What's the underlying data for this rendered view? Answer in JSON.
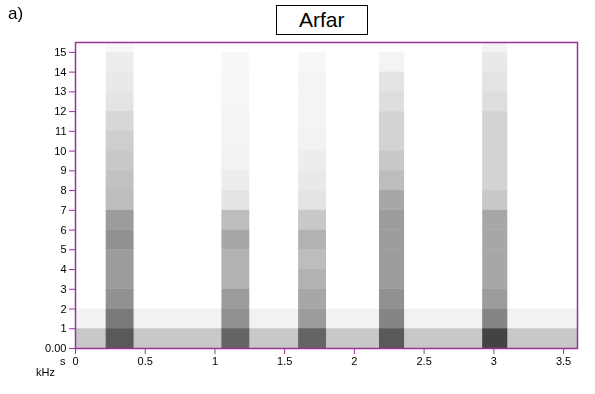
{
  "chart_data": {
    "type": "spectrogram",
    "title": "Arfar",
    "annotations": [
      "a)"
    ],
    "x_label": "s",
    "y_label": "kHz",
    "xlim": [
      0,
      3.6
    ],
    "xticks": [
      0,
      0.5,
      1,
      1.5,
      2,
      2.5,
      3,
      3.5
    ],
    "ylim": [
      0,
      15.5
    ],
    "yticks": [
      {
        "value": 0,
        "label": "0.00"
      },
      1,
      2,
      3,
      4,
      5,
      6,
      7,
      8,
      9,
      10,
      11,
      12,
      13,
      14,
      15
    ],
    "color": "#993399",
    "zlim": [
      0,
      1
    ],
    "freq_bins": [
      0,
      1,
      2,
      3,
      4,
      5,
      6,
      7,
      8,
      9,
      10,
      11,
      12,
      13,
      14,
      15,
      15.5
    ],
    "background": {
      "start": 0,
      "end": 3.6,
      "intensity": [
        0.25,
        0.06,
        0,
        0,
        0,
        0,
        0,
        0,
        0,
        0,
        0,
        0,
        0,
        0,
        0,
        0
      ]
    },
    "bursts": [
      {
        "start": 0.22,
        "end": 0.42,
        "intensity": [
          0.75,
          0.6,
          0.5,
          0.45,
          0.45,
          0.5,
          0.45,
          0.3,
          0.28,
          0.25,
          0.22,
          0.18,
          0.12,
          0.1,
          0.08,
          0.03
        ]
      },
      {
        "start": 1.05,
        "end": 1.25,
        "intensity": [
          0.7,
          0.5,
          0.45,
          0.35,
          0.35,
          0.4,
          0.3,
          0.12,
          0.08,
          0.06,
          0.05,
          0.05,
          0.04,
          0.04,
          0.03,
          0
        ]
      },
      {
        "start": 1.6,
        "end": 1.8,
        "intensity": [
          0.7,
          0.45,
          0.4,
          0.35,
          0.3,
          0.35,
          0.25,
          0.12,
          0.1,
          0.08,
          0.06,
          0.05,
          0.05,
          0.05,
          0.03,
          0
        ]
      },
      {
        "start": 2.18,
        "end": 2.36,
        "intensity": [
          0.75,
          0.55,
          0.5,
          0.45,
          0.45,
          0.45,
          0.45,
          0.4,
          0.3,
          0.25,
          0.2,
          0.2,
          0.15,
          0.12,
          0.05,
          0
        ]
      },
      {
        "start": 2.92,
        "end": 3.1,
        "intensity": [
          0.85,
          0.55,
          0.45,
          0.4,
          0.4,
          0.4,
          0.4,
          0.25,
          0.2,
          0.2,
          0.2,
          0.2,
          0.15,
          0.12,
          0.1,
          0.05
        ]
      }
    ]
  }
}
